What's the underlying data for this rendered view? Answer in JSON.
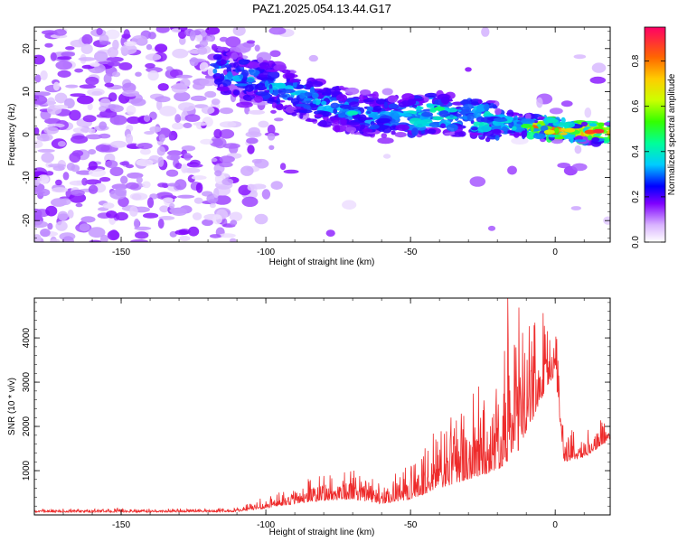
{
  "title": "PAZ1.2025.054.13.44.G17",
  "chart_data": [
    {
      "type": "heatmap",
      "xlabel": "Height of straight line (km)",
      "ylabel": "Frequency (Hz)",
      "xlim": [
        -180,
        19
      ],
      "ylim": [
        -25,
        25
      ],
      "xticks": [
        -150,
        -100,
        -50,
        0
      ],
      "yticks": [
        20,
        10,
        0,
        -10,
        -20
      ],
      "colorbar": {
        "label": "Normalized spectral amplitude",
        "range": [
          0,
          0.95
        ],
        "ticks": [
          0.0,
          0.2,
          0.4,
          0.6,
          0.8
        ]
      },
      "ridge": {
        "description_points": [
          {
            "x": -115,
            "y": 15
          },
          {
            "x": -100,
            "y": 12
          },
          {
            "x": -80,
            "y": 7
          },
          {
            "x": -60,
            "y": 4
          },
          {
            "x": -40,
            "y": 5
          },
          {
            "x": -20,
            "y": 3
          },
          {
            "x": 0,
            "y": 1
          },
          {
            "x": 15,
            "y": 0.5
          }
        ]
      }
    },
    {
      "type": "line",
      "xlabel": "Height of straight line (km)",
      "ylabel": "SNR (10 * v/v)",
      "xlim": [
        -180,
        19
      ],
      "ylim": [
        0,
        4900
      ],
      "xticks": [
        -150,
        -100,
        -50,
        0
      ],
      "yticks": [
        1000,
        2000,
        3000,
        4000
      ],
      "color": "#ee2b2b",
      "envelope": [
        {
          "x": -180,
          "base": 60,
          "amp": 80
        },
        {
          "x": -140,
          "base": 60,
          "amp": 80
        },
        {
          "x": -110,
          "base": 70,
          "amp": 90
        },
        {
          "x": -100,
          "base": 150,
          "amp": 250
        },
        {
          "x": -85,
          "base": 300,
          "amp": 550
        },
        {
          "x": -70,
          "base": 350,
          "amp": 700
        },
        {
          "x": -60,
          "base": 250,
          "amp": 500
        },
        {
          "x": -50,
          "base": 350,
          "amp": 800
        },
        {
          "x": -40,
          "base": 600,
          "amp": 1300
        },
        {
          "x": -30,
          "base": 800,
          "amp": 1900
        },
        {
          "x": -20,
          "base": 1000,
          "amp": 2300
        },
        {
          "x": -12,
          "base": 1500,
          "amp": 3300
        },
        {
          "x": -5,
          "base": 2600,
          "amp": 1600
        },
        {
          "x": 0,
          "base": 3200,
          "amp": 1300
        },
        {
          "x": 3,
          "base": 1200,
          "amp": 800
        },
        {
          "x": 10,
          "base": 1300,
          "amp": 600
        },
        {
          "x": 19,
          "base": 1700,
          "amp": 600
        }
      ]
    }
  ]
}
